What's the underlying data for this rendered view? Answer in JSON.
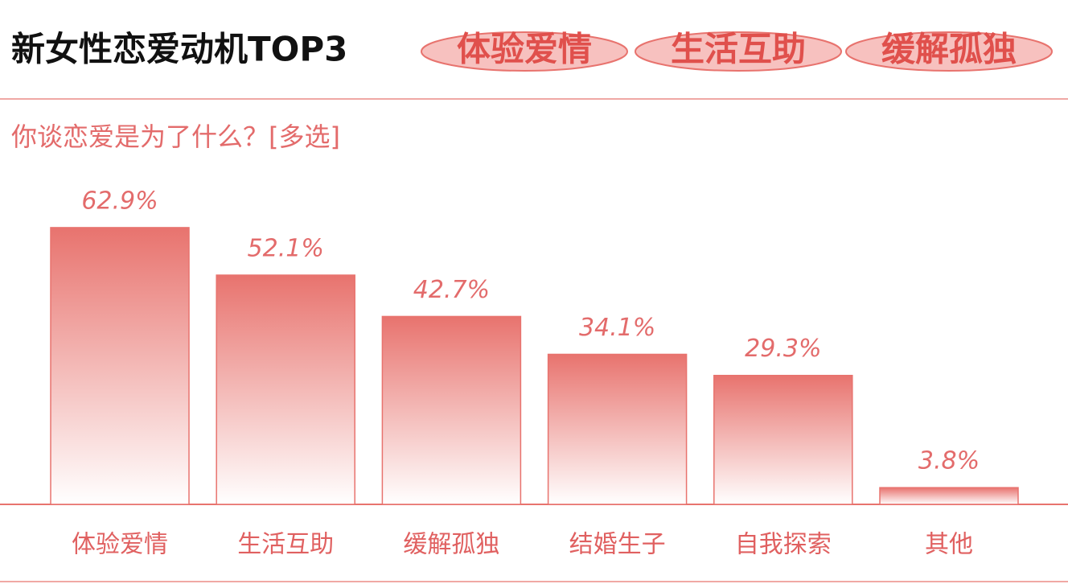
{
  "chart_data": {
    "type": "bar",
    "title": "新女性恋爱动机TOP3",
    "tags": [
      "体验爱情",
      "生活互助",
      "缓解孤独"
    ],
    "subtitle": "你谈恋爱是为了什么？[多选]",
    "categories": [
      "体验爱情",
      "生活互助",
      "缓解孤独",
      "结婚生子",
      "自我探索",
      "其他"
    ],
    "values": [
      62.9,
      52.1,
      42.7,
      34.1,
      29.3,
      3.8
    ],
    "value_labels": [
      "62.9%",
      "52.1%",
      "42.7%",
      "34.1%",
      "29.3%",
      "3.8%"
    ],
    "color": "#e8736e"
  }
}
